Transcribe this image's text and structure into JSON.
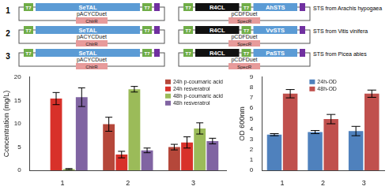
{
  "diagram": {
    "rows": [
      {
        "label": "1",
        "left_plasmid": {
          "promoter": "T7",
          "genes": [
            "SeTAL"
          ],
          "name": "pACYCDuet",
          "resistance": "ChlrR"
        },
        "right_plasmid": {
          "promoter": "T7",
          "genes": [
            "R4CL",
            "AhSTS"
          ],
          "name": "pCDFDuet",
          "resistance": "SpecR"
        },
        "note": "STS from Arachis hypogaea"
      },
      {
        "label": "2",
        "left_plasmid": {
          "promoter": "T7",
          "genes": [
            "SeTAL"
          ],
          "name": "pACYCDuet",
          "resistance": "ChlrR"
        },
        "right_plasmid": {
          "promoter": "T7",
          "genes": [
            "R4CL",
            "VvSTS"
          ],
          "name": "pCDFDuet",
          "resistance": "SpecR"
        },
        "note": "STS from Vitis vinifera"
      },
      {
        "label": "3",
        "left_plasmid": {
          "promoter": "T7",
          "genes": [
            "SeTAL"
          ],
          "name": "pACYCDuet",
          "resistance": "ChlrR"
        },
        "right_plasmid": {
          "promoter": "T7",
          "genes": [
            "R4CL",
            "PaSTS"
          ],
          "name": "pCDFDuet",
          "resistance": "SpecR"
        },
        "note": "STS from Picea abies"
      }
    ]
  },
  "chart_data": [
    {
      "type": "bar",
      "y_label": "Concentration (mg/L)",
      "categories": [
        "1",
        "2",
        "3"
      ],
      "series": [
        {
          "name": "24h p-coumaric acid",
          "color": "#b5473a",
          "values": [
            0,
            9.9,
            5.0
          ],
          "errors": [
            0,
            1.5,
            0.6
          ]
        },
        {
          "name": "24h resveratrol",
          "color": "#d8312a",
          "values": [
            15.4,
            3.4,
            6.0
          ],
          "errors": [
            1.3,
            0.7,
            1.2
          ]
        },
        {
          "name": "48h p-coumaric acid",
          "color": "#9bbb59",
          "values": [
            0.3,
            17.4,
            9.0
          ],
          "errors": [
            0.1,
            0.6,
            1.2
          ]
        },
        {
          "name": "48h resveratrol",
          "color": "#8064a2",
          "values": [
            15.7,
            4.3,
            6.3
          ],
          "errors": [
            2.0,
            0.5,
            0.6
          ]
        }
      ],
      "ylim": [
        0,
        20
      ],
      "yticks": [
        0,
        5,
        10,
        15,
        20
      ],
      "grid": false,
      "legend": "top-right"
    },
    {
      "type": "bar",
      "y_label": "OD 600nm",
      "categories": [
        "1",
        "2",
        "3"
      ],
      "series": [
        {
          "name": "24h-OD",
          "color": "#4f81bd",
          "values": [
            3.45,
            3.7,
            3.8
          ],
          "errors": [
            0.1,
            0.15,
            0.45
          ]
        },
        {
          "name": "48h-OD",
          "color": "#c0504d",
          "values": [
            7.4,
            4.95,
            7.4
          ],
          "errors": [
            0.4,
            0.45,
            0.35
          ]
        }
      ],
      "ylim": [
        0,
        9
      ],
      "yticks": [
        0,
        1,
        2,
        3,
        4,
        5,
        6,
        7,
        8,
        9
      ],
      "grid": false,
      "legend": "top"
    }
  ]
}
